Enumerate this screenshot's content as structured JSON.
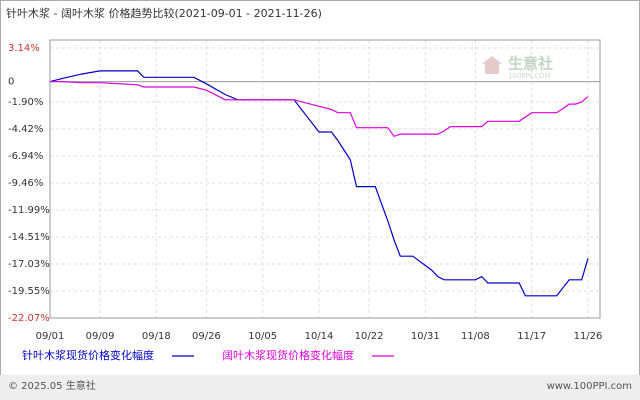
{
  "chart_data": {
    "type": "line",
    "title": "针叶木浆 - 阔叶木浆 价格趋势比较(2021-09-01 - 2021-11-26)",
    "x": [
      "09/01",
      "09/03",
      "09/06",
      "09/09",
      "09/15",
      "09/16",
      "09/24",
      "09/26",
      "09/29",
      "10/01",
      "10/10",
      "10/14",
      "10/16",
      "10/17",
      "10/19",
      "10/20",
      "10/23",
      "10/25",
      "10/26",
      "10/27",
      "10/28",
      "10/29",
      "11/01",
      "11/02",
      "11/03",
      "11/04",
      "11/08",
      "11/09",
      "11/10",
      "11/15",
      "11/16",
      "11/17",
      "11/21",
      "11/23",
      "11/24",
      "11/25",
      "11/26"
    ],
    "xlim": [
      "09/01",
      "11/26"
    ],
    "xticks": [
      "09/01",
      "09/09",
      "09/18",
      "09/26",
      "10/05",
      "10/14",
      "10/22",
      "10/31",
      "11/08",
      "11/17",
      "11/26"
    ],
    "ylim": [
      -22.07,
      3.14
    ],
    "yticks": [
      {
        "value": 3.14,
        "label": "3.14%"
      },
      0,
      {
        "value": -1.9,
        "label": "-1.90%"
      },
      {
        "value": -4.42,
        "label": "-4.42%"
      },
      {
        "value": -6.94,
        "label": "-6.94%"
      },
      {
        "value": -9.46,
        "label": "-9.46%"
      },
      {
        "value": -11.99,
        "label": "-11.99%"
      },
      {
        "value": -14.51,
        "label": "-14.51%"
      },
      {
        "value": -17.03,
        "label": "-17.03%"
      },
      {
        "value": -19.55,
        "label": "-19.55%"
      },
      {
        "value": -22.07,
        "label": "-22.07%"
      }
    ],
    "grid": true,
    "series": [
      {
        "name": "针叶木浆现货价格变化幅度",
        "color": "#0000cc",
        "values": [
          0,
          0.3,
          0.7,
          1.0,
          1.0,
          0.4,
          0.4,
          -0.2,
          -1.2,
          -1.7,
          -1.7,
          -4.7,
          -4.7,
          -5.5,
          -7.3,
          -9.8,
          -9.8,
          -13.0,
          -14.8,
          -16.3,
          -16.3,
          -16.3,
          -17.6,
          -18.2,
          -18.5,
          -18.5,
          -18.5,
          -18.2,
          -18.8,
          -18.8,
          -20.0,
          -20.0,
          -20.0,
          -18.5,
          -18.5,
          -18.5,
          -16.5
        ]
      },
      {
        "name": "阔叶木浆现货价格变化幅度",
        "color": "#dd00dd",
        "values": [
          0,
          0,
          -0.1,
          -0.1,
          -0.3,
          -0.5,
          -0.5,
          -0.8,
          -1.7,
          -1.7,
          -1.7,
          -2.3,
          -2.6,
          -2.9,
          -2.9,
          -4.3,
          -4.3,
          -4.3,
          -5.1,
          -4.9,
          -4.9,
          -4.9,
          -4.9,
          -4.9,
          -4.6,
          -4.2,
          -4.2,
          -4.2,
          -3.7,
          -3.7,
          -3.3,
          -2.9,
          -2.9,
          -2.1,
          -2.1,
          -1.9,
          -1.4
        ]
      }
    ]
  },
  "watermark": {
    "name": "生意社",
    "url": "100PPI.COM"
  },
  "footer": {
    "left": "© 2025.05 生意社",
    "right": "www.100PPI.com"
  }
}
